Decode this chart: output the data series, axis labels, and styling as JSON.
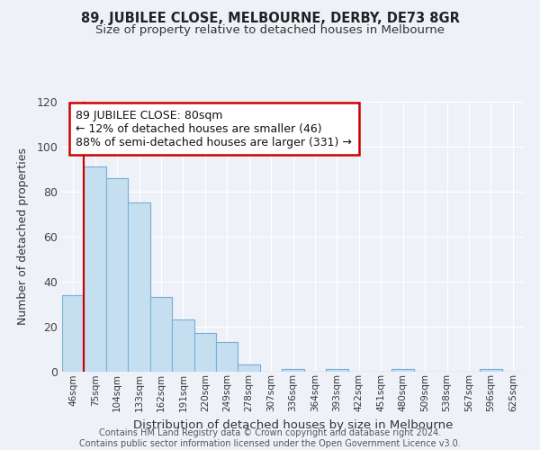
{
  "title": "89, JUBILEE CLOSE, MELBOURNE, DERBY, DE73 8GR",
  "subtitle": "Size of property relative to detached houses in Melbourne",
  "xlabel": "Distribution of detached houses by size in Melbourne",
  "ylabel": "Number of detached properties",
  "bar_color": "#c5dff0",
  "bar_edge_color": "#7aafd4",
  "background_color": "#eef2f8",
  "grid_color": "#ffffff",
  "categories": [
    "46sqm",
    "75sqm",
    "104sqm",
    "133sqm",
    "162sqm",
    "191sqm",
    "220sqm",
    "249sqm",
    "278sqm",
    "307sqm",
    "336sqm",
    "364sqm",
    "393sqm",
    "422sqm",
    "451sqm",
    "480sqm",
    "509sqm",
    "538sqm",
    "567sqm",
    "596sqm",
    "625sqm"
  ],
  "values": [
    34,
    91,
    86,
    75,
    33,
    23,
    17,
    13,
    3,
    0,
    1,
    0,
    1,
    0,
    0,
    1,
    0,
    0,
    0,
    1,
    0
  ],
  "ylim": [
    0,
    120
  ],
  "yticks": [
    0,
    20,
    40,
    60,
    80,
    100,
    120
  ],
  "vline_color": "#cc0000",
  "annotation_title": "89 JUBILEE CLOSE: 80sqm",
  "annotation_line1": "← 12% of detached houses are smaller (46)",
  "annotation_line2": "88% of semi-detached houses are larger (331) →",
  "annotation_box_color": "#ffffff",
  "annotation_box_edge": "#cc0000",
  "footer1": "Contains HM Land Registry data © Crown copyright and database right 2024.",
  "footer2": "Contains public sector information licensed under the Open Government Licence v3.0."
}
